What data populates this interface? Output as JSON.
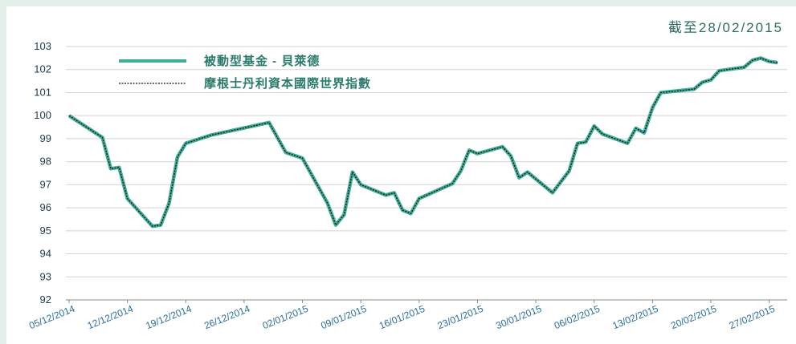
{
  "chart_data": {
    "type": "line",
    "title": "截至28/02/2015",
    "x": [
      "05/12/2014",
      "09/12/2014",
      "10/12/2014",
      "11/12/2014",
      "12/12/2014",
      "15/12/2014",
      "16/12/2014",
      "17/12/2014",
      "18/12/2014",
      "19/12/2014",
      "22/12/2014",
      "29/12/2014",
      "31/12/2014",
      "02/01/2015",
      "05/01/2015",
      "06/01/2015",
      "07/01/2015",
      "08/01/2015",
      "09/01/2015",
      "12/01/2015",
      "13/01/2015",
      "14/01/2015",
      "15/01/2015",
      "16/01/2015",
      "20/01/2015",
      "21/01/2015",
      "22/01/2015",
      "23/01/2015",
      "26/01/2015",
      "27/01/2015",
      "28/01/2015",
      "29/01/2015",
      "01/02/2015",
      "03/02/2015",
      "04/02/2015",
      "05/02/2015",
      "06/02/2015",
      "07/02/2015",
      "10/02/2015",
      "11/02/2015",
      "12/02/2015",
      "13/02/2015",
      "14/02/2015",
      "18/02/2015",
      "19/02/2015",
      "20/02/2015",
      "21/02/2015",
      "24/02/2015",
      "25/02/2015",
      "26/02/2015",
      "27/02/2015",
      "28/02/2015"
    ],
    "series": [
      {
        "name": "被動型基金 - 貝萊德",
        "color": "#3fae98",
        "values": [
          100.0,
          99.05,
          97.7,
          97.75,
          96.4,
          95.2,
          95.25,
          96.2,
          98.2,
          98.8,
          99.15,
          99.7,
          98.4,
          98.15,
          96.2,
          95.25,
          95.7,
          97.55,
          97.0,
          96.55,
          96.65,
          95.9,
          95.75,
          96.4,
          97.05,
          97.6,
          98.5,
          98.35,
          98.65,
          98.25,
          97.3,
          97.55,
          96.65,
          97.6,
          98.8,
          98.85,
          99.55,
          99.2,
          98.8,
          99.45,
          99.25,
          100.35,
          101.0,
          101.15,
          101.45,
          101.55,
          101.95,
          102.1,
          102.4,
          102.5,
          102.35,
          102.3
        ]
      },
      {
        "name": "摩根士丹利資本國際世界指數",
        "color": "#111111",
        "values": [
          100.0,
          99.05,
          97.7,
          97.75,
          96.4,
          95.2,
          95.25,
          96.2,
          98.2,
          98.8,
          99.15,
          99.7,
          98.4,
          98.15,
          96.2,
          95.25,
          95.7,
          97.55,
          97.0,
          96.55,
          96.65,
          95.9,
          95.75,
          96.4,
          97.05,
          97.6,
          98.5,
          98.35,
          98.65,
          98.25,
          97.3,
          97.55,
          96.65,
          97.6,
          98.8,
          98.85,
          99.55,
          99.2,
          98.8,
          99.45,
          99.25,
          100.35,
          101.0,
          101.15,
          101.45,
          101.55,
          101.95,
          102.1,
          102.4,
          102.5,
          102.35,
          102.3
        ]
      }
    ],
    "xlim": [
      "05/12/2014",
      "28/02/2015"
    ],
    "xticks": [
      "05/12/2014",
      "12/12/2014",
      "19/12/2014",
      "26/12/2014",
      "02/01/2015",
      "09/01/2015",
      "16/01/2015",
      "23/01/2015",
      "30/01/2015",
      "06/02/2015",
      "13/02/2015",
      "20/02/2015",
      "27/02/2015"
    ],
    "ylim": [
      92,
      103
    ],
    "yticks": [
      92,
      93,
      94,
      95,
      96,
      97,
      98,
      99,
      100,
      101,
      102,
      103
    ],
    "grid": true
  }
}
